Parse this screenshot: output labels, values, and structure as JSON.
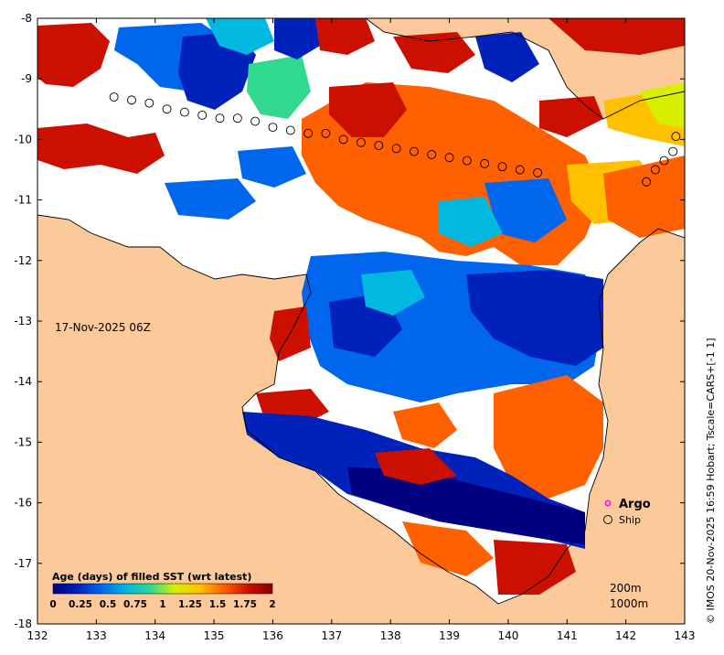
{
  "map": {
    "timestamp": "17-Nov-2025 06Z",
    "credit": "© IMOS 20-Nov-2025 16:59 Hobart; Tscale=CARS+[-1 1]",
    "x_ticks": [
      "132",
      "133",
      "134",
      "135",
      "136",
      "137",
      "138",
      "139",
      "140",
      "141",
      "142",
      "143"
    ],
    "y_ticks": [
      "-8",
      "-9",
      "-10",
      "-11",
      "-12",
      "-13",
      "-14",
      "-15",
      "-16",
      "-17",
      "-18"
    ],
    "x_range": [
      132,
      143
    ],
    "y_range": [
      -18,
      -8
    ],
    "land_color": "#fbc99a",
    "no_data_color": "#ffffff"
  },
  "colorbar": {
    "title": "Age (days) of filled SST (wrt latest)",
    "ticks": [
      "0",
      "0.25",
      "0.5",
      "0.75",
      "1",
      "1.25",
      "1.5",
      "1.75",
      "2"
    ],
    "range": [
      0,
      2
    ],
    "colors": [
      "#000080",
      "#0022bb",
      "#0066ee",
      "#00b8e0",
      "#30d890",
      "#d8f000",
      "#ffc000",
      "#ff6000",
      "#cc1000",
      "#880000"
    ]
  },
  "legend": {
    "argo_label": "Argo",
    "ship_label": "Ship",
    "depth_200": "200m",
    "depth_1000": "1000m"
  },
  "ship_track": [
    {
      "lon": 133.3,
      "lat": -9.3
    },
    {
      "lon": 133.6,
      "lat": -9.35
    },
    {
      "lon": 133.9,
      "lat": -9.4
    },
    {
      "lon": 134.2,
      "lat": -9.5
    },
    {
      "lon": 134.5,
      "lat": -9.55
    },
    {
      "lon": 134.8,
      "lat": -9.6
    },
    {
      "lon": 135.1,
      "lat": -9.65
    },
    {
      "lon": 135.4,
      "lat": -9.65
    },
    {
      "lon": 135.7,
      "lat": -9.7
    },
    {
      "lon": 136.0,
      "lat": -9.8
    },
    {
      "lon": 136.3,
      "lat": -9.85
    },
    {
      "lon": 136.6,
      "lat": -9.9
    },
    {
      "lon": 136.9,
      "lat": -9.9
    },
    {
      "lon": 137.2,
      "lat": -10.0
    },
    {
      "lon": 137.5,
      "lat": -10.05
    },
    {
      "lon": 137.8,
      "lat": -10.1
    },
    {
      "lon": 138.1,
      "lat": -10.15
    },
    {
      "lon": 138.4,
      "lat": -10.2
    },
    {
      "lon": 138.7,
      "lat": -10.25
    },
    {
      "lon": 139.0,
      "lat": -10.3
    },
    {
      "lon": 139.3,
      "lat": -10.35
    },
    {
      "lon": 139.6,
      "lat": -10.4
    },
    {
      "lon": 139.9,
      "lat": -10.45
    },
    {
      "lon": 140.2,
      "lat": -10.5
    },
    {
      "lon": 140.5,
      "lat": -10.55
    },
    {
      "lon": 142.35,
      "lat": -10.7
    },
    {
      "lon": 142.5,
      "lat": -10.5
    },
    {
      "lon": 142.65,
      "lat": -10.35
    },
    {
      "lon": 142.8,
      "lat": -10.2
    },
    {
      "lon": 142.85,
      "lat": -9.95
    }
  ],
  "argo_floats": []
}
